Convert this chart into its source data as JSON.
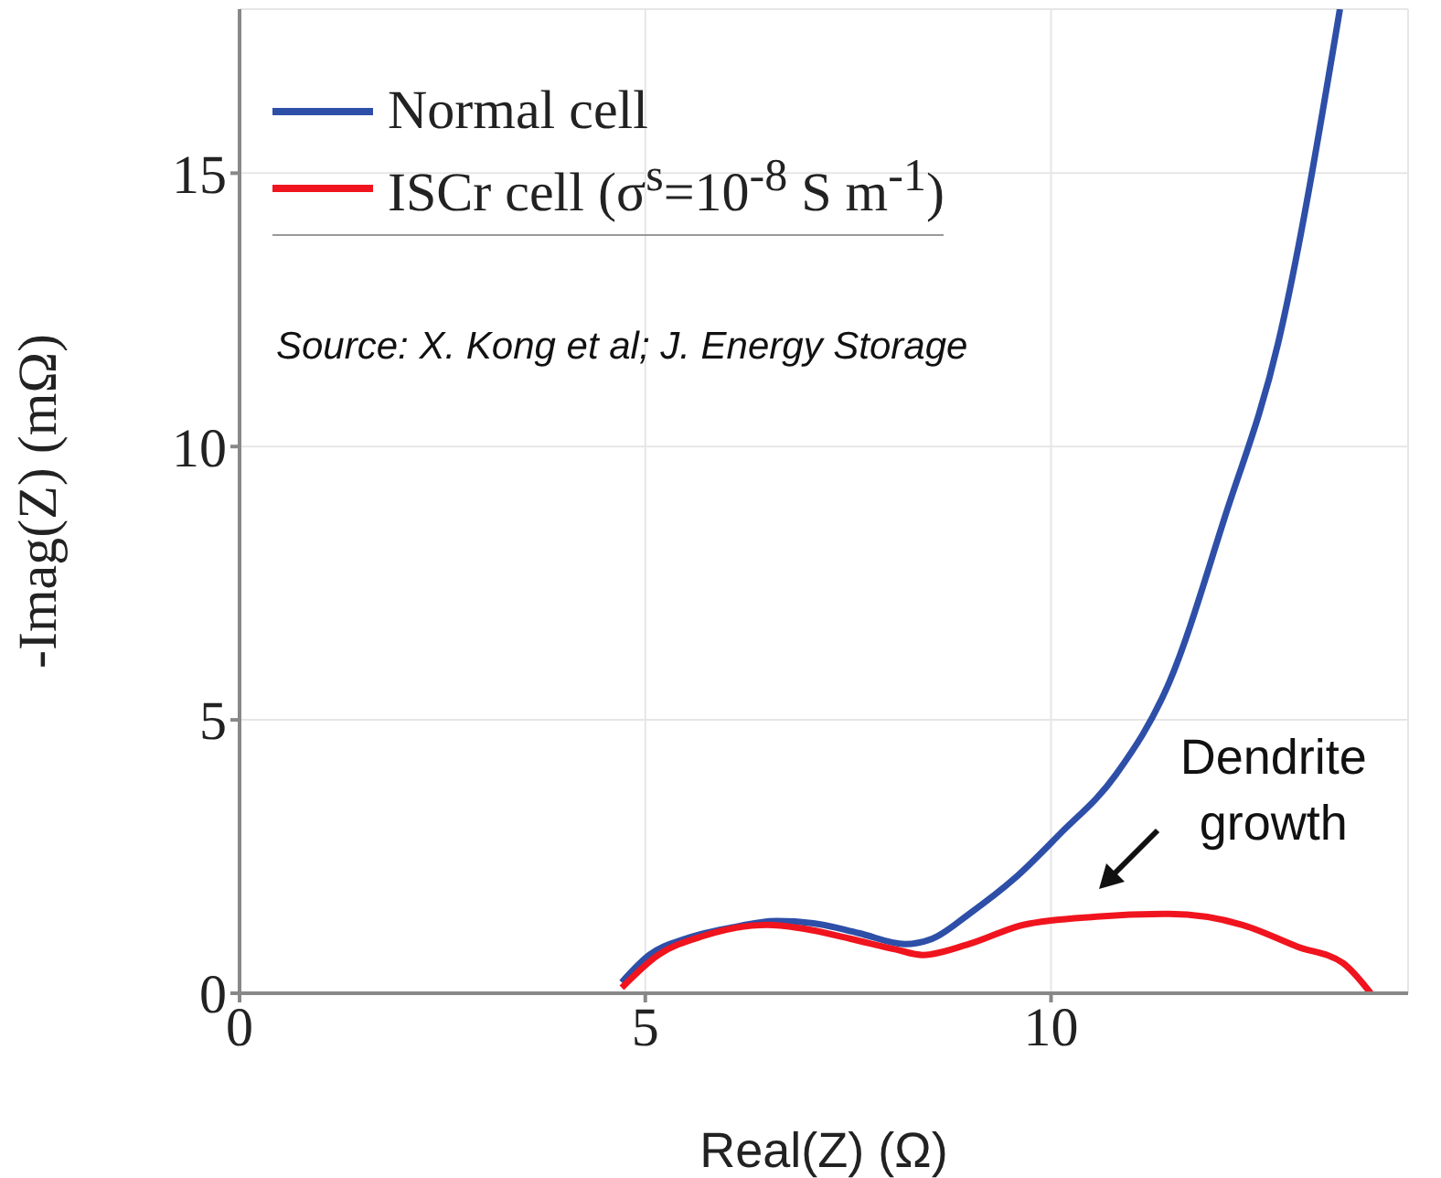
{
  "chart_data": {
    "type": "line",
    "xlabel": "Real(Z)  (Ω)",
    "ylabel": "-Imag(Z) (mΩ)",
    "xlim": [
      0,
      14.4
    ],
    "ylim": [
      0,
      18
    ],
    "xticks": [
      0,
      5,
      10
    ],
    "yticks": [
      0,
      5,
      10,
      15
    ],
    "grid": true,
    "legend": "top left",
    "annotations": [
      "Source: X. Kong et al; J. Energy Storage",
      {
        "text": "Dendrite growth",
        "x": 10.6,
        "y": 1.5
      }
    ],
    "series": [
      {
        "name": "Normal cell",
        "color": "#2e4fa8",
        "x": [
          4.71,
          5.05,
          5.5,
          6.06,
          6.62,
          7.07,
          7.63,
          8.2,
          8.54,
          8.99,
          9.55,
          10.1,
          10.8,
          11.46,
          12.14,
          12.8,
          13.56
        ],
        "values": [
          0.2,
          0.7,
          1.0,
          1.2,
          1.32,
          1.28,
          1.1,
          0.9,
          1.0,
          1.45,
          2.1,
          2.9,
          4.0,
          5.7,
          8.7,
          11.9,
          18.0
        ]
      },
      {
        "name": "ISCr cell (σ$^{s}$=10$^{-8}$ S m$^{-1}$)",
        "color": "#f0141e",
        "x": [
          4.71,
          5.16,
          5.72,
          6.5,
          6.96,
          7.52,
          8.09,
          8.42,
          8.99,
          9.66,
          10.56,
          11.46,
          12.36,
          13.04,
          13.6,
          13.94
        ],
        "values": [
          0.1,
          0.7,
          1.05,
          1.25,
          1.18,
          1.0,
          0.8,
          0.7,
          0.9,
          1.25,
          1.4,
          1.45,
          1.25,
          0.85,
          0.55,
          0.0
        ]
      }
    ]
  }
}
